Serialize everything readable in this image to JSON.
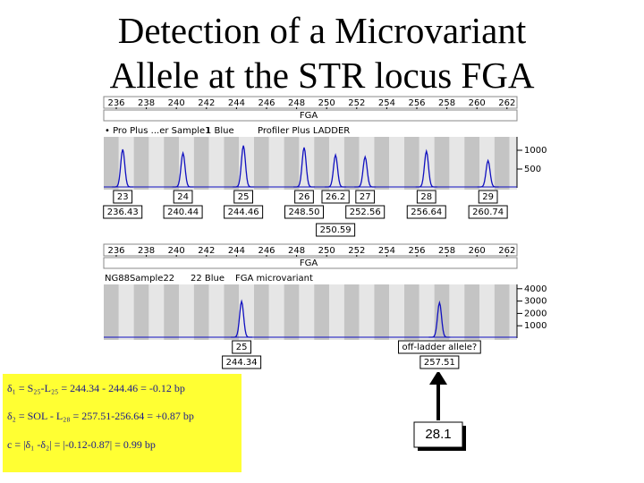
{
  "title": [
    "Detection  of a Microvariant",
    "Allele at the STR locus FGA"
  ],
  "panels": [
    {
      "scale": [
        236,
        238,
        240,
        242,
        244,
        246,
        248,
        250,
        252,
        254,
        256,
        258,
        260,
        262
      ],
      "locus": "FGA",
      "header": [
        "• Pro Plus ...er Sample1",
        "1 Blue",
        "Profiler Plus LADDER"
      ],
      "yticks": [
        500,
        1000
      ],
      "peaks": [
        {
          "label": "23",
          "size": 236.43,
          "height": 1000
        },
        {
          "label": "24",
          "size": 240.44,
          "height": 900
        },
        {
          "label": "25",
          "size": 244.46,
          "height": 1100
        },
        {
          "label": "26",
          "size": 248.5,
          "size_label": "248.50",
          "height": 1050
        },
        {
          "label": "26.2",
          "size": 250.59,
          "height": 850
        },
        {
          "label": "27",
          "size": 252.56,
          "height": 800
        },
        {
          "label": "28",
          "size": 256.64,
          "height": 950
        },
        {
          "label": "29",
          "size": 260.74,
          "height": 700
        }
      ]
    },
    {
      "scale": [
        236,
        238,
        240,
        242,
        244,
        246,
        248,
        250,
        252,
        254,
        256,
        258,
        260,
        262
      ],
      "locus": "FGA",
      "header": [
        "NG88Sample22",
        "22 Blue",
        "FGA microvariant"
      ],
      "yticks": [
        1000,
        2000,
        3000,
        4000
      ],
      "peaks": [
        {
          "label": "25",
          "size": 244.34,
          "height": 2900
        },
        {
          "label": "off-ladder allele?",
          "size": 257.51,
          "height": 2800
        }
      ]
    }
  ],
  "notes": [
    "δ₁ = S₂₅-L₂₅ = 244.34 - 244.46 = -0.12 bp",
    "δ₂ = SOL - L₂₈ = 257.51-256.64 = +0.87 bp",
    "c = |δ₁ -δ₂| = |-0.12-0.87| = 0.99 bp"
  ],
  "callout": "28.1"
}
